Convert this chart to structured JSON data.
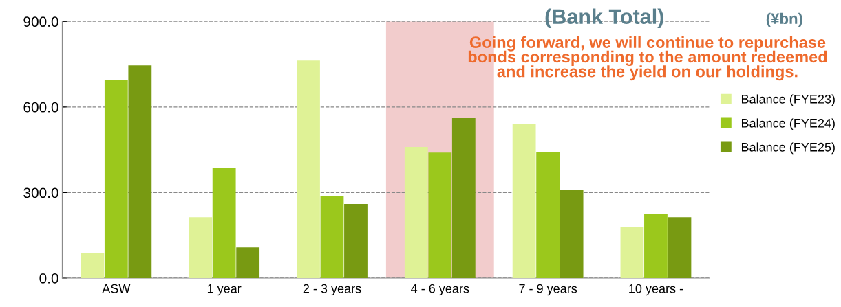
{
  "chart_data": {
    "type": "bar",
    "title": "(Bank Total)",
    "subtitle": "(¥bn)",
    "annotations": [
      "Going forward, we will continue to repurchase\nbonds corresponding to the amount redeemed\nand increase the yield on our holdings."
    ],
    "categories": [
      "ASW",
      "1 year",
      "2 - 3 years",
      "4 - 6 years",
      "7 - 9 years",
      "10 years -"
    ],
    "series": [
      {
        "name": "Balance (FYE23)",
        "color": "#dff296",
        "values": [
          89,
          214,
          763,
          460,
          541,
          180
        ]
      },
      {
        "name": "Balance (FYE24)",
        "color": "#9bc81c",
        "values": [
          695,
          385,
          289,
          440,
          443,
          226
        ]
      },
      {
        "name": "Balance (FYE25)",
        "color": "#789a12",
        "values": [
          746,
          108,
          260,
          561,
          310,
          214
        ]
      }
    ],
    "ylim": [
      0,
      900
    ],
    "yticks": [
      {
        "value": 0,
        "label": "0.0"
      },
      {
        "value": 300,
        "label": "300.0"
      },
      {
        "value": 600,
        "label": "600.0"
      },
      {
        "value": 900,
        "label": "900.0"
      }
    ],
    "bands": [
      {
        "axis": "x",
        "from": "4 - 6 years",
        "to": "4 - 6 years",
        "color": "#f2cccc"
      }
    ],
    "grid": "y",
    "legend": "right"
  }
}
